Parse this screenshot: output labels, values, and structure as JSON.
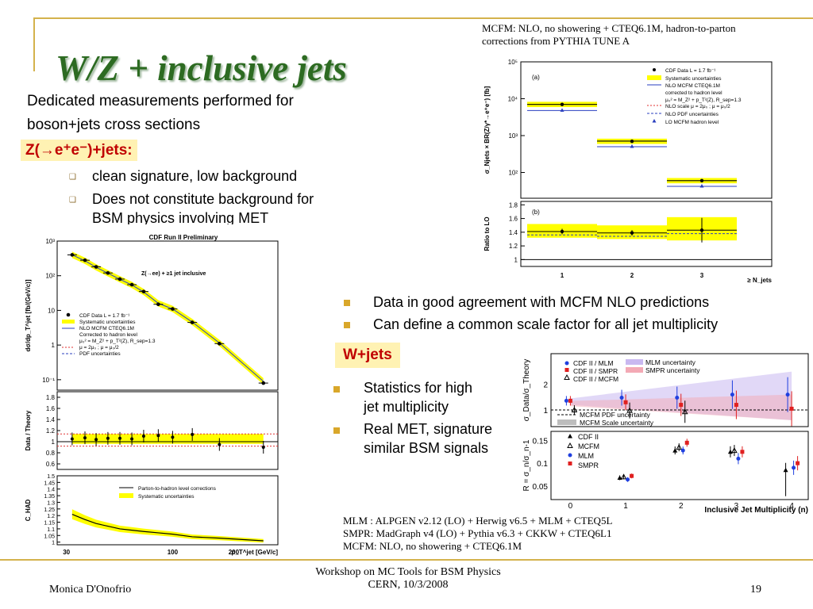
{
  "slide": {
    "title": "W/Z + inclusive jets",
    "intro_line1": "Dedicated measurements performed for",
    "intro_line2": "boson+jets cross sections",
    "z_label": "Z(→e⁺e⁻)+jets:",
    "z_bullets": [
      "clean signature, low background",
      "Does not constitute background for",
      "BSM physics involving MET"
    ],
    "right_bullets": [
      "Data in good agreement  with MCFM NLO predictions",
      "Can define a common scale factor for all jet multiplicity"
    ],
    "w_label": "W+jets",
    "w_bullets": [
      "Statistics for high",
      "jet multiplicity",
      "Real MET, signature",
      "similar BSM signals"
    ],
    "mcfm_note_line1": "MCFM: NLO, no showering + CTEQ6.1M, hadron-to-parton",
    "mcfm_note_line2": "corrections from PYTHIA TUNE A",
    "gen_notes": [
      "MLM :    ALPGEN v2.12 (LO) + Herwig v6.5 + MLM + CTEQ5L",
      "SMPR:    MadGraph v4 (LO) + Pythia v6.3 + CKKW + CTEQ6L1",
      "MCFM: NLO, no showering + CTEQ6.1M"
    ]
  },
  "footer": {
    "author": "Monica D'Onofrio",
    "workshop_line1": "Workshop on MC Tools for BSM Physics",
    "workshop_line2": "CERN, 10/3/2008",
    "page": "19"
  },
  "colors": {
    "title": "#2d6b22",
    "accent": "#d4b24c",
    "highlight": "#fff2b3",
    "label_red": "#c00000",
    "band": "#ffff00"
  },
  "chart_data": [
    {
      "id": "z-pt",
      "type": "scatter",
      "title": "CDF Run II Preliminary",
      "annotation": "Z(→ee) + ≥1 jet inclusive",
      "xlabel": "p_T^jet [GeV/c]",
      "x_scale": "log",
      "xlim": [
        27,
        330
      ],
      "x_ticks": [
        "30",
        "100",
        "200"
      ],
      "panels": [
        {
          "name": "main",
          "ylabel": "dσ/dp_T^jet [fb/(GeV/c)]",
          "y_scale": "log",
          "ylim": [
            0.05,
            1000
          ],
          "y_ticks": [
            "10⁻¹",
            "1",
            "10",
            "10²",
            "10³"
          ]
        },
        {
          "name": "ratio",
          "ylabel": "Data / Theory",
          "ylim": [
            0.5,
            1.9
          ],
          "y_ticks": [
            "0.6",
            "0.8",
            "1",
            "1.2",
            "1.4",
            "1.6",
            "1.8"
          ]
        },
        {
          "name": "chad",
          "ylabel": "C_HAD",
          "ylim": [
            0.98,
            1.5
          ],
          "y_ticks": [
            "1",
            "1.05",
            "1.1",
            "1.15",
            "1.2",
            "1.25",
            "1.3",
            "1.35",
            "1.4",
            "1.45",
            "1.5"
          ]
        }
      ],
      "legend": [
        "CDF Data  L = 1.7 fb⁻¹",
        "Systematic uncertainties",
        "NLO MCFM CTEQ6.1M",
        "Corrected to hadron level",
        "μ₀² = M_Z² + p_T²(Z), R_sep=1.3",
        "μ = 2μ₀ ; μ = μ₀/2",
        "PDF uncertainties"
      ],
      "chad_legend": [
        "Parton-to-hadron level corrections",
        "Systematic uncertainties"
      ],
      "x": [
        32,
        37,
        42,
        48,
        55,
        63,
        72,
        85,
        100,
        125,
        170,
        280
      ],
      "data": [
        400,
        280,
        180,
        120,
        80,
        55,
        35,
        15,
        11,
        4.5,
        1.1,
        0.08
      ],
      "theory": [
        400,
        270,
        175,
        118,
        79,
        54,
        34,
        16,
        11,
        4.6,
        1.15,
        0.09
      ],
      "ratio": [
        1.05,
        1.07,
        1.04,
        1.06,
        1.06,
        1.05,
        1.1,
        1.11,
        1.08,
        1.13,
        0.95,
        0.9
      ],
      "chad": [
        1.21,
        1.17,
        1.14,
        1.12,
        1.1,
        1.09,
        1.08,
        1.07,
        1.06,
        1.04,
        1.03,
        1.01
      ]
    },
    {
      "id": "z-njets",
      "type": "scatter",
      "panel_labels": [
        "(a)",
        "(b)"
      ],
      "xlabel": "≥ N_jets",
      "categories": [
        "1",
        "2",
        "3"
      ],
      "ylabel_top": "σ_Njets × BR(Z/γ*→e⁺e⁻) [fb]",
      "ylabel_bottom": "Ratio to LO",
      "ylim_top": [
        20,
        100000
      ],
      "y_ticks_top": [
        "10²",
        "10³",
        "10⁴",
        "10⁵"
      ],
      "ylim_bottom": [
        0.9,
        1.85
      ],
      "y_ticks_bottom": [
        "1",
        "1.2",
        "1.4",
        "1.6",
        "1.8"
      ],
      "legend": [
        "CDF Data  L = 1.7 fb⁻¹",
        "Systematic uncertainties",
        "NLO MCFM CTEQ6.1M",
        "corrected to hadron level",
        "μ₀² = M_Z² + p_T²(Z), R_sep=1.3",
        "NLO scale μ = 2μ₀ ; μ = μ₀/2",
        "NLO PDF uncertainties",
        "LO MCFM hadron level"
      ],
      "data": [
        7000,
        700,
        60
      ],
      "nlo": [
        7000,
        710,
        60
      ],
      "lo": [
        4800,
        500,
        42
      ],
      "ratio": [
        1.41,
        1.39,
        1.43
      ]
    },
    {
      "id": "w-ratio",
      "type": "scatter",
      "xlabel": "Inclusive Jet Multiplicity (n)",
      "ylabel_top": "σ_Data/σ_Theory",
      "ylabel_bottom": "R = σ_n/σ_n-1",
      "x_ticks": [
        "0",
        "1",
        "2",
        "3",
        "4"
      ],
      "xlim": [
        -0.35,
        4.3
      ],
      "ylim_top": [
        0.35,
        3.2
      ],
      "y_ticks_top": [
        "1",
        "2"
      ],
      "ylim_bottom": [
        0.02,
        0.17
      ],
      "y_ticks_bottom": [
        "0.05",
        "0.1",
        "0.15"
      ],
      "legend_top": [
        "CDF II / MLM",
        "CDF II / SMPR",
        "CDF II / MCFM",
        "MLM uncertainty",
        "SMPR uncertainty",
        "MCFM PDF uncertainty",
        "MCFM Scale uncertainty"
      ],
      "legend_bottom": [
        "CDF II",
        "MCFM",
        "MLM",
        "SMPR"
      ],
      "series_top": [
        {
          "name": "CDF II / MLM",
          "x": [
            0,
            1,
            2,
            3,
            4
          ],
          "values": [
            1.36,
            1.48,
            1.48,
            1.6,
            1.6
          ]
        },
        {
          "name": "CDF II / SMPR",
          "x": [
            0,
            1,
            2,
            3,
            4
          ],
          "values": [
            1.36,
            1.3,
            1.2,
            1.2,
            1.05
          ]
        },
        {
          "name": "CDF II / MCFM",
          "x": [
            0,
            1,
            2
          ],
          "values": [
            1.0,
            0.98,
            0.93
          ]
        }
      ],
      "series_bottom": [
        {
          "name": "CDF II",
          "x": [
            1,
            2,
            3,
            4
          ],
          "values": [
            0.068,
            0.128,
            0.125,
            0.085
          ]
        },
        {
          "name": "MCFM",
          "x": [
            1,
            2,
            3
          ],
          "values": [
            0.07,
            0.135,
            0.128
          ]
        },
        {
          "name": "MLM",
          "x": [
            1,
            2,
            3,
            4
          ],
          "values": [
            0.064,
            0.128,
            0.11,
            0.09
          ]
        },
        {
          "name": "SMPR",
          "x": [
            1,
            2,
            3,
            4
          ],
          "values": [
            0.072,
            0.145,
            0.125,
            0.1
          ]
        }
      ]
    }
  ]
}
